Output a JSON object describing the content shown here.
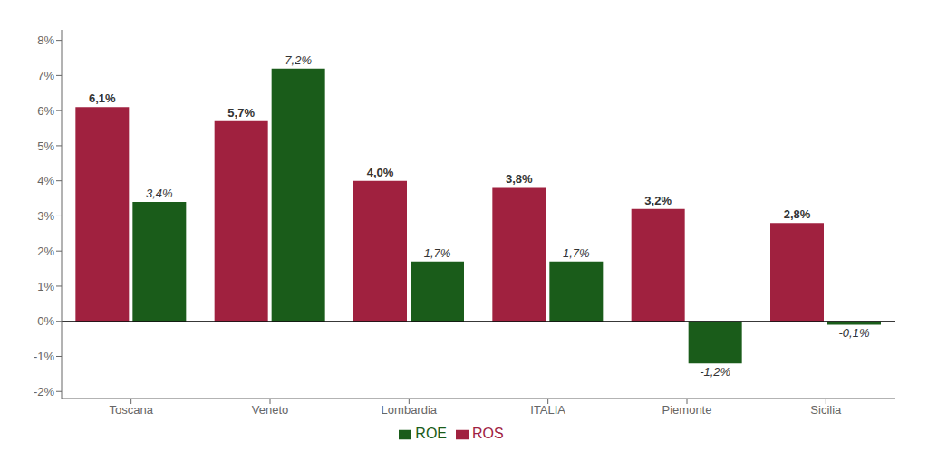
{
  "chart_data": {
    "type": "bar",
    "categories": [
      "Toscana",
      "Veneto",
      "Lombardia",
      "ITALIA",
      "Piemonte",
      "Sicilia"
    ],
    "series": [
      {
        "name": "ROS",
        "color": "#A0213F",
        "values": [
          6.1,
          5.7,
          4.0,
          3.8,
          3.2,
          2.8
        ],
        "value_labels": [
          "6,1%",
          "5,7%",
          "4,0%",
          "3,8%",
          "3,2%",
          "2,8%"
        ]
      },
      {
        "name": "ROE",
        "color": "#1A5C1A",
        "values": [
          3.4,
          7.2,
          1.7,
          1.7,
          -1.2,
          -0.1
        ],
        "value_labels": [
          "3,4%",
          "7,2%",
          "1,7%",
          "1,7%",
          "-1,2%",
          "-0,1%"
        ]
      }
    ],
    "ylim": [
      -2.2,
      8.3
    ],
    "yticks": [
      {
        "value": -2,
        "label": "-2%"
      },
      {
        "value": -1,
        "label": "-1%"
      },
      {
        "value": 0,
        "label": "0%"
      },
      {
        "value": 1,
        "label": "1%"
      },
      {
        "value": 2,
        "label": "2%"
      },
      {
        "value": 3,
        "label": "3%"
      },
      {
        "value": 4,
        "label": "4%"
      },
      {
        "value": 5,
        "label": "5%"
      },
      {
        "value": 6,
        "label": "6%"
      },
      {
        "value": 7,
        "label": "7%"
      },
      {
        "value": 8,
        "label": "8%"
      }
    ],
    "legend": "bottom",
    "data_labels": true
  }
}
